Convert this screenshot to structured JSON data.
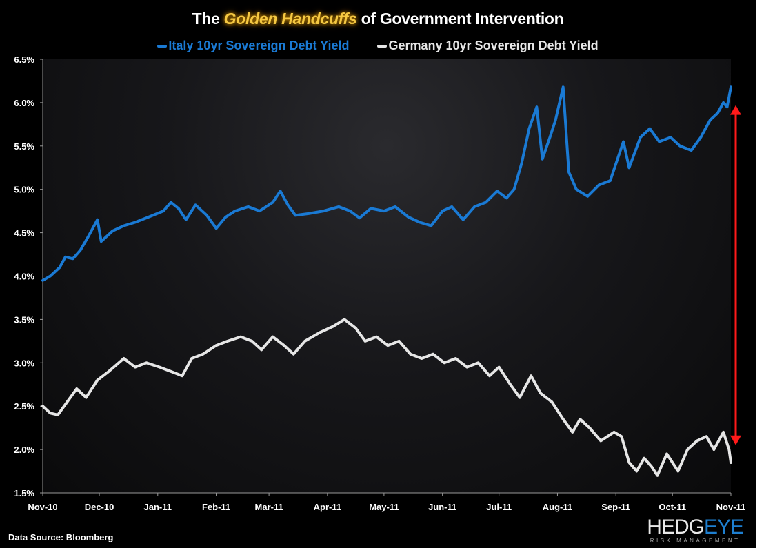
{
  "chart_data": {
    "type": "line",
    "title_parts": [
      "The ",
      "Golden Handcuffs",
      " of Government Intervention"
    ],
    "xlabel": "",
    "ylabel": "",
    "ylim": [
      1.5,
      6.5
    ],
    "xlim": [
      "2010-11-01",
      "2011-11-01"
    ],
    "y_ticks": [
      "1.5%",
      "2.0%",
      "2.5%",
      "3.0%",
      "3.5%",
      "4.0%",
      "4.5%",
      "5.0%",
      "5.5%",
      "6.0%",
      "6.5%"
    ],
    "x_ticks": [
      {
        "date": "2010-11-01",
        "label": "Nov-10"
      },
      {
        "date": "2010-12-01",
        "label": "Dec-10"
      },
      {
        "date": "2011-01-01",
        "label": "Jan-11"
      },
      {
        "date": "2011-02-01",
        "label": "Feb-11"
      },
      {
        "date": "2011-03-01",
        "label": "Mar-11"
      },
      {
        "date": "2011-04-01",
        "label": "Apr-11"
      },
      {
        "date": "2011-05-01",
        "label": "May-11"
      },
      {
        "date": "2011-06-01",
        "label": "Jun-11"
      },
      {
        "date": "2011-07-01",
        "label": "Jul-11"
      },
      {
        "date": "2011-08-01",
        "label": "Aug-11"
      },
      {
        "date": "2011-09-01",
        "label": "Sep-11"
      },
      {
        "date": "2011-10-01",
        "label": "Oct-11"
      },
      {
        "date": "2011-11-01",
        "label": "Nov-11"
      }
    ],
    "grid": false,
    "legend_position": "top-center",
    "series": [
      {
        "name": "Italy 10yr Sovereign Debt Yield",
        "color": "#1a7ad4",
        "points": [
          [
            "2010-11-01",
            3.95
          ],
          [
            "2010-11-05",
            4.0
          ],
          [
            "2010-11-10",
            4.1
          ],
          [
            "2010-11-13",
            4.22
          ],
          [
            "2010-11-17",
            4.2
          ],
          [
            "2010-11-21",
            4.3
          ],
          [
            "2010-11-25",
            4.45
          ],
          [
            "2010-11-30",
            4.65
          ],
          [
            "2010-12-02",
            4.4
          ],
          [
            "2010-12-08",
            4.52
          ],
          [
            "2010-12-14",
            4.58
          ],
          [
            "2010-12-20",
            4.62
          ],
          [
            "2010-12-27",
            4.68
          ],
          [
            "2011-01-04",
            4.75
          ],
          [
            "2011-01-08",
            4.85
          ],
          [
            "2011-01-12",
            4.78
          ],
          [
            "2011-01-16",
            4.65
          ],
          [
            "2011-01-21",
            4.82
          ],
          [
            "2011-01-27",
            4.7
          ],
          [
            "2011-02-01",
            4.55
          ],
          [
            "2011-02-06",
            4.68
          ],
          [
            "2011-02-11",
            4.75
          ],
          [
            "2011-02-18",
            4.8
          ],
          [
            "2011-02-24",
            4.75
          ],
          [
            "2011-03-03",
            4.85
          ],
          [
            "2011-03-07",
            4.98
          ],
          [
            "2011-03-11",
            4.82
          ],
          [
            "2011-03-15",
            4.7
          ],
          [
            "2011-03-22",
            4.72
          ],
          [
            "2011-03-30",
            4.75
          ],
          [
            "2011-04-07",
            4.8
          ],
          [
            "2011-04-13",
            4.75
          ],
          [
            "2011-04-18",
            4.67
          ],
          [
            "2011-04-24",
            4.78
          ],
          [
            "2011-05-01",
            4.75
          ],
          [
            "2011-05-07",
            4.8
          ],
          [
            "2011-05-14",
            4.68
          ],
          [
            "2011-05-20",
            4.62
          ],
          [
            "2011-05-26",
            4.58
          ],
          [
            "2011-06-01",
            4.75
          ],
          [
            "2011-06-06",
            4.8
          ],
          [
            "2011-06-12",
            4.65
          ],
          [
            "2011-06-18",
            4.8
          ],
          [
            "2011-06-24",
            4.85
          ],
          [
            "2011-06-30",
            4.98
          ],
          [
            "2011-07-05",
            4.9
          ],
          [
            "2011-07-09",
            5.0
          ],
          [
            "2011-07-13",
            5.3
          ],
          [
            "2011-07-17",
            5.7
          ],
          [
            "2011-07-21",
            5.95
          ],
          [
            "2011-07-24",
            5.35
          ],
          [
            "2011-07-28",
            5.6
          ],
          [
            "2011-07-31",
            5.8
          ],
          [
            "2011-08-04",
            6.18
          ],
          [
            "2011-08-07",
            5.2
          ],
          [
            "2011-08-11",
            5.0
          ],
          [
            "2011-08-17",
            4.92
          ],
          [
            "2011-08-23",
            5.05
          ],
          [
            "2011-08-29",
            5.1
          ],
          [
            "2011-09-05",
            5.55
          ],
          [
            "2011-09-08",
            5.25
          ],
          [
            "2011-09-14",
            5.6
          ],
          [
            "2011-09-19",
            5.7
          ],
          [
            "2011-09-24",
            5.55
          ],
          [
            "2011-09-30",
            5.6
          ],
          [
            "2011-10-05",
            5.5
          ],
          [
            "2011-10-11",
            5.45
          ],
          [
            "2011-10-16",
            5.6
          ],
          [
            "2011-10-21",
            5.8
          ],
          [
            "2011-10-25",
            5.88
          ],
          [
            "2011-10-28",
            6.0
          ],
          [
            "2011-10-30",
            5.95
          ],
          [
            "2011-11-01",
            6.18
          ]
        ]
      },
      {
        "name": "Germany 10yr Sovereign Debt Yield",
        "color": "#e6e6e6",
        "points": [
          [
            "2010-11-01",
            2.5
          ],
          [
            "2010-11-05",
            2.42
          ],
          [
            "2010-11-09",
            2.4
          ],
          [
            "2010-11-14",
            2.55
          ],
          [
            "2010-11-19",
            2.7
          ],
          [
            "2010-11-24",
            2.6
          ],
          [
            "2010-11-30",
            2.8
          ],
          [
            "2010-12-06",
            2.9
          ],
          [
            "2010-12-14",
            3.05
          ],
          [
            "2010-12-20",
            2.95
          ],
          [
            "2010-12-26",
            3.0
          ],
          [
            "2011-01-02",
            2.95
          ],
          [
            "2011-01-08",
            2.9
          ],
          [
            "2011-01-14",
            2.85
          ],
          [
            "2011-01-19",
            3.05
          ],
          [
            "2011-01-25",
            3.1
          ],
          [
            "2011-02-01",
            3.2
          ],
          [
            "2011-02-07",
            3.25
          ],
          [
            "2011-02-14",
            3.3
          ],
          [
            "2011-02-20",
            3.25
          ],
          [
            "2011-02-25",
            3.15
          ],
          [
            "2011-03-03",
            3.3
          ],
          [
            "2011-03-09",
            3.2
          ],
          [
            "2011-03-14",
            3.1
          ],
          [
            "2011-03-20",
            3.25
          ],
          [
            "2011-03-28",
            3.35
          ],
          [
            "2011-04-04",
            3.42
          ],
          [
            "2011-04-10",
            3.5
          ],
          [
            "2011-04-16",
            3.4
          ],
          [
            "2011-04-21",
            3.25
          ],
          [
            "2011-04-27",
            3.3
          ],
          [
            "2011-05-03",
            3.2
          ],
          [
            "2011-05-09",
            3.25
          ],
          [
            "2011-05-15",
            3.1
          ],
          [
            "2011-05-21",
            3.05
          ],
          [
            "2011-05-27",
            3.1
          ],
          [
            "2011-06-02",
            3.0
          ],
          [
            "2011-06-08",
            3.05
          ],
          [
            "2011-06-14",
            2.95
          ],
          [
            "2011-06-20",
            3.0
          ],
          [
            "2011-06-26",
            2.85
          ],
          [
            "2011-07-01",
            2.95
          ],
          [
            "2011-07-07",
            2.75
          ],
          [
            "2011-07-12",
            2.6
          ],
          [
            "2011-07-18",
            2.85
          ],
          [
            "2011-07-23",
            2.65
          ],
          [
            "2011-07-29",
            2.55
          ],
          [
            "2011-08-04",
            2.35
          ],
          [
            "2011-08-09",
            2.2
          ],
          [
            "2011-08-13",
            2.35
          ],
          [
            "2011-08-18",
            2.25
          ],
          [
            "2011-08-24",
            2.1
          ],
          [
            "2011-08-31",
            2.2
          ],
          [
            "2011-09-04",
            2.15
          ],
          [
            "2011-09-08",
            1.85
          ],
          [
            "2011-09-12",
            1.75
          ],
          [
            "2011-09-16",
            1.9
          ],
          [
            "2011-09-20",
            1.8
          ],
          [
            "2011-09-23",
            1.7
          ],
          [
            "2011-09-28",
            1.95
          ],
          [
            "2011-10-04",
            1.75
          ],
          [
            "2011-10-09",
            2.0
          ],
          [
            "2011-10-14",
            2.1
          ],
          [
            "2011-10-19",
            2.15
          ],
          [
            "2011-10-23",
            2.0
          ],
          [
            "2011-10-28",
            2.2
          ],
          [
            "2011-10-31",
            2.0
          ],
          [
            "2011-11-01",
            1.85
          ]
        ]
      }
    ],
    "annotation": {
      "type": "double-arrow",
      "color": "#ff1a1a",
      "from": 5.97,
      "to": 2.05
    }
  },
  "footer": {
    "source": "Data Source: Bloomberg"
  },
  "logo": {
    "main_a": "HEDG",
    "main_b": "EYE",
    "sub": "RISK MANAGEMENT"
  }
}
